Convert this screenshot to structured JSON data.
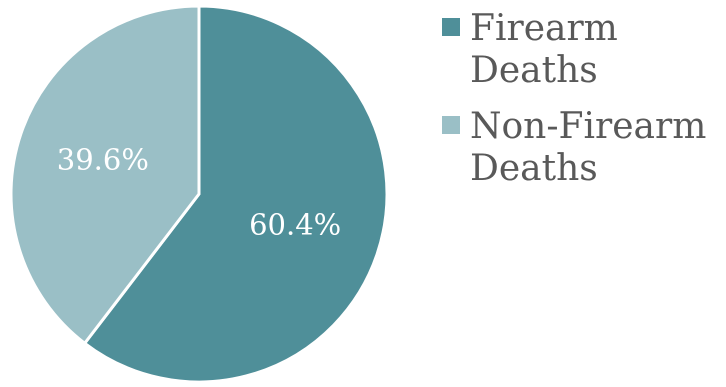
{
  "chart_data": {
    "type": "pie",
    "title": "",
    "slices": [
      {
        "name": "Firearm Deaths",
        "value": 60.4,
        "label": "60.4%",
        "color": "#4f8f99"
      },
      {
        "name": "Non-Firearm Deaths",
        "value": 39.6,
        "label": "39.6%",
        "color": "#9abfc6"
      }
    ],
    "legend_position": "right"
  }
}
